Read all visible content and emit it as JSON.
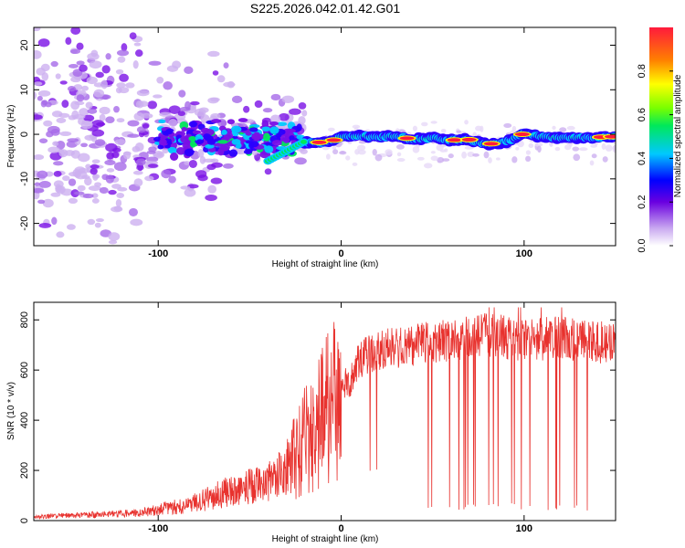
{
  "title": "S225.2026.042.01.42.G01",
  "chart_data": [
    {
      "type": "heatmap",
      "name": "spectrogram",
      "xlabel": "Height of straight line (km)",
      "ylabel": "Frequency (Hz)",
      "xlim": [
        -168,
        150
      ],
      "ylim": [
        -25,
        24
      ],
      "xticks": [
        -100,
        0,
        100
      ],
      "yticks": [
        -20,
        -10,
        0,
        10,
        20
      ],
      "colorbar": {
        "label": "Normalized spectral amplitude",
        "ticks": [
          0.0,
          0.2,
          0.4,
          0.6,
          0.8
        ],
        "range": [
          0,
          1
        ]
      },
      "ridge_track": [
        {
          "x": -20,
          "y": -1.8
        },
        {
          "x": -10,
          "y": -1.8
        },
        {
          "x": -5,
          "y": -1.5
        },
        {
          "x": 0,
          "y": -0.5
        },
        {
          "x": 10,
          "y": -0.4
        },
        {
          "x": 20,
          "y": -0.6
        },
        {
          "x": 30,
          "y": -0.4
        },
        {
          "x": 40,
          "y": -1.2
        },
        {
          "x": 50,
          "y": -0.8
        },
        {
          "x": 60,
          "y": -1.3
        },
        {
          "x": 70,
          "y": -1.2
        },
        {
          "x": 80,
          "y": -2.2
        },
        {
          "x": 90,
          "y": -1.8
        },
        {
          "x": 100,
          "y": 0.2
        },
        {
          "x": 110,
          "y": -0.6
        },
        {
          "x": 120,
          "y": -0.8
        },
        {
          "x": 130,
          "y": -0.8
        },
        {
          "x": 150,
          "y": -0.5
        }
      ]
    },
    {
      "type": "line",
      "name": "snr",
      "xlabel": "Height of straight line (km)",
      "ylabel": "SNR (10 * v/v)",
      "xlim": [
        -168,
        150
      ],
      "ylim": [
        0,
        870
      ],
      "xticks": [
        -100,
        0,
        100
      ],
      "yticks": [
        0,
        200,
        400,
        600,
        800
      ],
      "color": "#e8322e",
      "series": [
        {
          "name": "SNR trend",
          "x": [
            -168,
            -150,
            -130,
            -110,
            -100,
            -90,
            -80,
            -70,
            -60,
            -50,
            -40,
            -30,
            -25,
            -20,
            -15,
            -10,
            -5,
            0,
            5,
            10,
            20,
            30,
            40,
            50,
            60,
            80,
            100,
            120,
            140,
            150
          ],
          "y": [
            15,
            20,
            25,
            30,
            45,
            55,
            70,
            95,
            120,
            140,
            150,
            200,
            280,
            360,
            380,
            460,
            520,
            540,
            560,
            640,
            680,
            690,
            700,
            710,
            720,
            740,
            720,
            730,
            710,
            720
          ]
        }
      ]
    }
  ]
}
